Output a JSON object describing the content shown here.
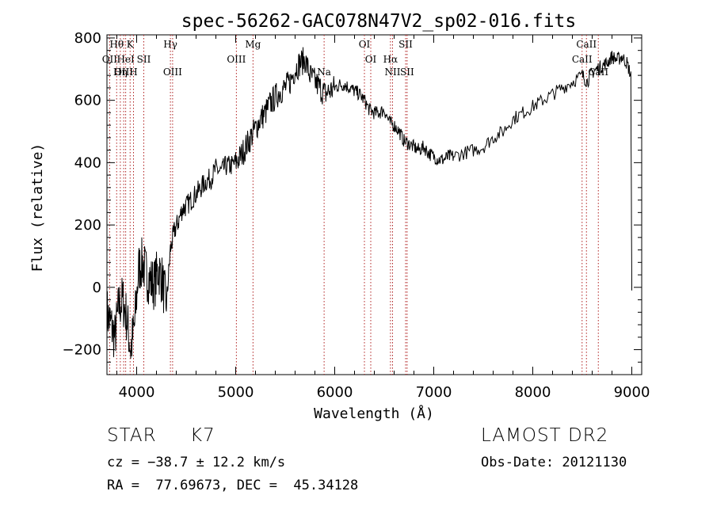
{
  "chart_data": {
    "type": "line",
    "title": "spec-56262-GAC078N47V2_sp02-016.fits",
    "xlabel": "Wavelength (Å)",
    "ylabel": "Flux (relative)",
    "xlim": [
      3700,
      9100
    ],
    "ylim": [
      -280,
      810
    ],
    "x_ticks": [
      4000,
      5000,
      6000,
      7000,
      8000,
      9000
    ],
    "y_ticks": [
      -200,
      0,
      200,
      400,
      600,
      800
    ],
    "grid": false,
    "series": [
      {
        "x": [
          3700,
          3740,
          3780,
          3820,
          3860,
          3900,
          3940,
          3980,
          4020,
          4060,
          4100,
          4140,
          4180,
          4220,
          4260,
          4300,
          4340,
          4380,
          4420,
          4460,
          4500,
          4550,
          4600,
          4650,
          4700,
          4750,
          4800,
          4850,
          4900,
          4950,
          5000,
          5050,
          5100,
          5150,
          5200,
          5250,
          5300,
          5350,
          5400,
          5450,
          5500,
          5550,
          5600,
          5650,
          5700,
          5750,
          5800,
          5850,
          5900,
          5950,
          6000,
          6050,
          6100,
          6150,
          6200,
          6250,
          6300,
          6350,
          6400,
          6450,
          6500,
          6550,
          6600,
          6650,
          6700,
          6750,
          6800,
          6850,
          6900,
          6950,
          7000,
          7050,
          7100,
          7150,
          7200,
          7300,
          7400,
          7500,
          7600,
          7700,
          7800,
          7900,
          8000,
          8100,
          8200,
          8300,
          8400,
          8500,
          8550,
          8600,
          8650,
          8700,
          8750,
          8800,
          8850,
          8900,
          8950,
          8990,
          9000
        ],
        "y": [
          -80,
          -120,
          -160,
          -60,
          -40,
          -100,
          -200,
          -120,
          60,
          80,
          40,
          20,
          10,
          60,
          20,
          -60,
          120,
          180,
          210,
          250,
          260,
          280,
          300,
          320,
          340,
          350,
          380,
          370,
          390,
          390,
          400,
          420,
          450,
          480,
          510,
          540,
          560,
          590,
          610,
          630,
          640,
          660,
          700,
          720,
          730,
          680,
          660,
          640,
          620,
          630,
          640,
          650,
          650,
          640,
          630,
          620,
          600,
          570,
          560,
          560,
          570,
          530,
          520,
          500,
          470,
          460,
          450,
          440,
          450,
          430,
          420,
          410,
          410,
          420,
          420,
          430,
          440,
          450,
          480,
          500,
          540,
          560,
          580,
          600,
          620,
          640,
          660,
          680,
          660,
          690,
          700,
          710,
          720,
          740,
          730,
          740,
          720,
          680,
          -10
        ]
      }
    ],
    "lines": [
      {
        "label": "Hθ",
        "x": 3798
      },
      {
        "label": "OII",
        "x": 3727
      },
      {
        "label": "OIII",
        "x": 3869
      },
      {
        "label": "K",
        "x": 3934
      },
      {
        "label": "H",
        "x": 3968
      },
      {
        "label": "HeI",
        "x": 3889
      },
      {
        "label": "Hη",
        "x": 3835
      },
      {
        "label": "SII",
        "x": 4072
      },
      {
        "label": "Hγ",
        "x": 4341
      },
      {
        "label": "OIII",
        "x": 4363
      },
      {
        "label": "OIII",
        "x": 5007
      },
      {
        "label": "Mg",
        "x": 5175
      },
      {
        "label": "Na",
        "x": 5893
      },
      {
        "label": "OI",
        "x": 6300
      },
      {
        "label": "OI",
        "x": 6364
      },
      {
        "label": "Hα",
        "x": 6563
      },
      {
        "label": "NII",
        "x": 6584
      },
      {
        "label": "SII",
        "x": 6716
      },
      {
        "label": "SII",
        "x": 6731
      },
      {
        "label": "CaII",
        "x": 8542
      },
      {
        "label": "CaII",
        "x": 8498
      },
      {
        "label": "CaII",
        "x": 8662
      }
    ]
  },
  "info": {
    "class": "STAR",
    "subclass": "K7",
    "cz": "cz = −38.7 ± 12.2 km/s",
    "coords": "RA =  77.69673, DEC =  45.34128",
    "survey": "LAMOST DR2",
    "obs_date": "Obs-Date: 20121130"
  }
}
